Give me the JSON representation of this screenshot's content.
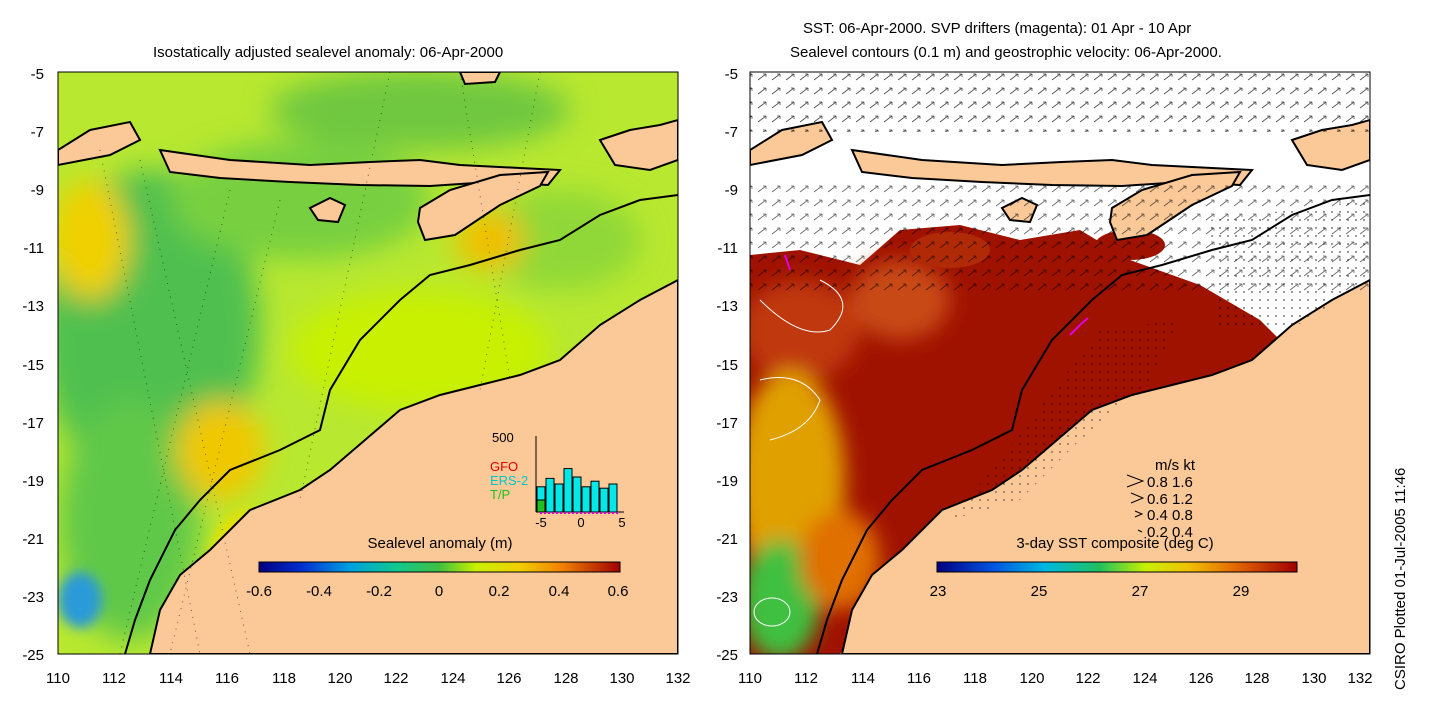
{
  "left_panel": {
    "title": "Isostatically adjusted sealevel anomaly: 06-Apr-2000",
    "y_ticks": [
      "-5",
      "-7",
      "-9",
      "-11",
      "-13",
      "-15",
      "-17",
      "-19",
      "-21",
      "-23",
      "-25"
    ],
    "x_ticks": [
      "110",
      "112",
      "114",
      "116",
      "118",
      "120",
      "122",
      "124",
      "126",
      "128",
      "130",
      "132"
    ],
    "colorbar": {
      "label": "Sealevel anomaly (m)",
      "ticks": [
        "-0.6",
        "-0.4",
        "-0.2",
        "0",
        "0.2",
        "0.4",
        "0.6"
      ]
    },
    "histogram": {
      "y_max_label": "500",
      "x_labels": [
        "-5",
        "0",
        "5"
      ],
      "legend": [
        "GFO",
        "ERS-2",
        "T/P"
      ],
      "colors": [
        "#e00000",
        "#00c8c8",
        "#20c020"
      ],
      "bar_counts": [
        180,
        240,
        200,
        310,
        250,
        180,
        220,
        170,
        200
      ]
    }
  },
  "right_panel": {
    "title_line1": "SST: 06-Apr-2000. SVP drifters (magenta): 01 Apr - 10 Apr",
    "title_line2": "Sealevel contours (0.1 m) and geostrophic velocity: 06-Apr-2000.",
    "y_ticks": [
      "-5",
      "-7",
      "-9",
      "-11",
      "-13",
      "-15",
      "-17",
      "-19",
      "-21",
      "-23",
      "-25"
    ],
    "x_ticks": [
      "110",
      "112",
      "114",
      "116",
      "118",
      "120",
      "122",
      "124",
      "126",
      "128",
      "130",
      "132"
    ],
    "velocity_legend": {
      "header": "m/s  kt",
      "rows": [
        "0.8  1.6",
        "0.6  1.2",
        "0.4  0.8",
        "0.2  0.4"
      ]
    },
    "colorbar": {
      "label": "3-day SST composite (deg C)",
      "ticks": [
        "23",
        "25",
        "27",
        "29"
      ]
    }
  },
  "credit": "CSIRO Plotted 01-Jul-2005 11:46",
  "colors": {
    "land": "#fbc898",
    "sst_warm": "#a01200",
    "slope_contour": "#000000"
  }
}
